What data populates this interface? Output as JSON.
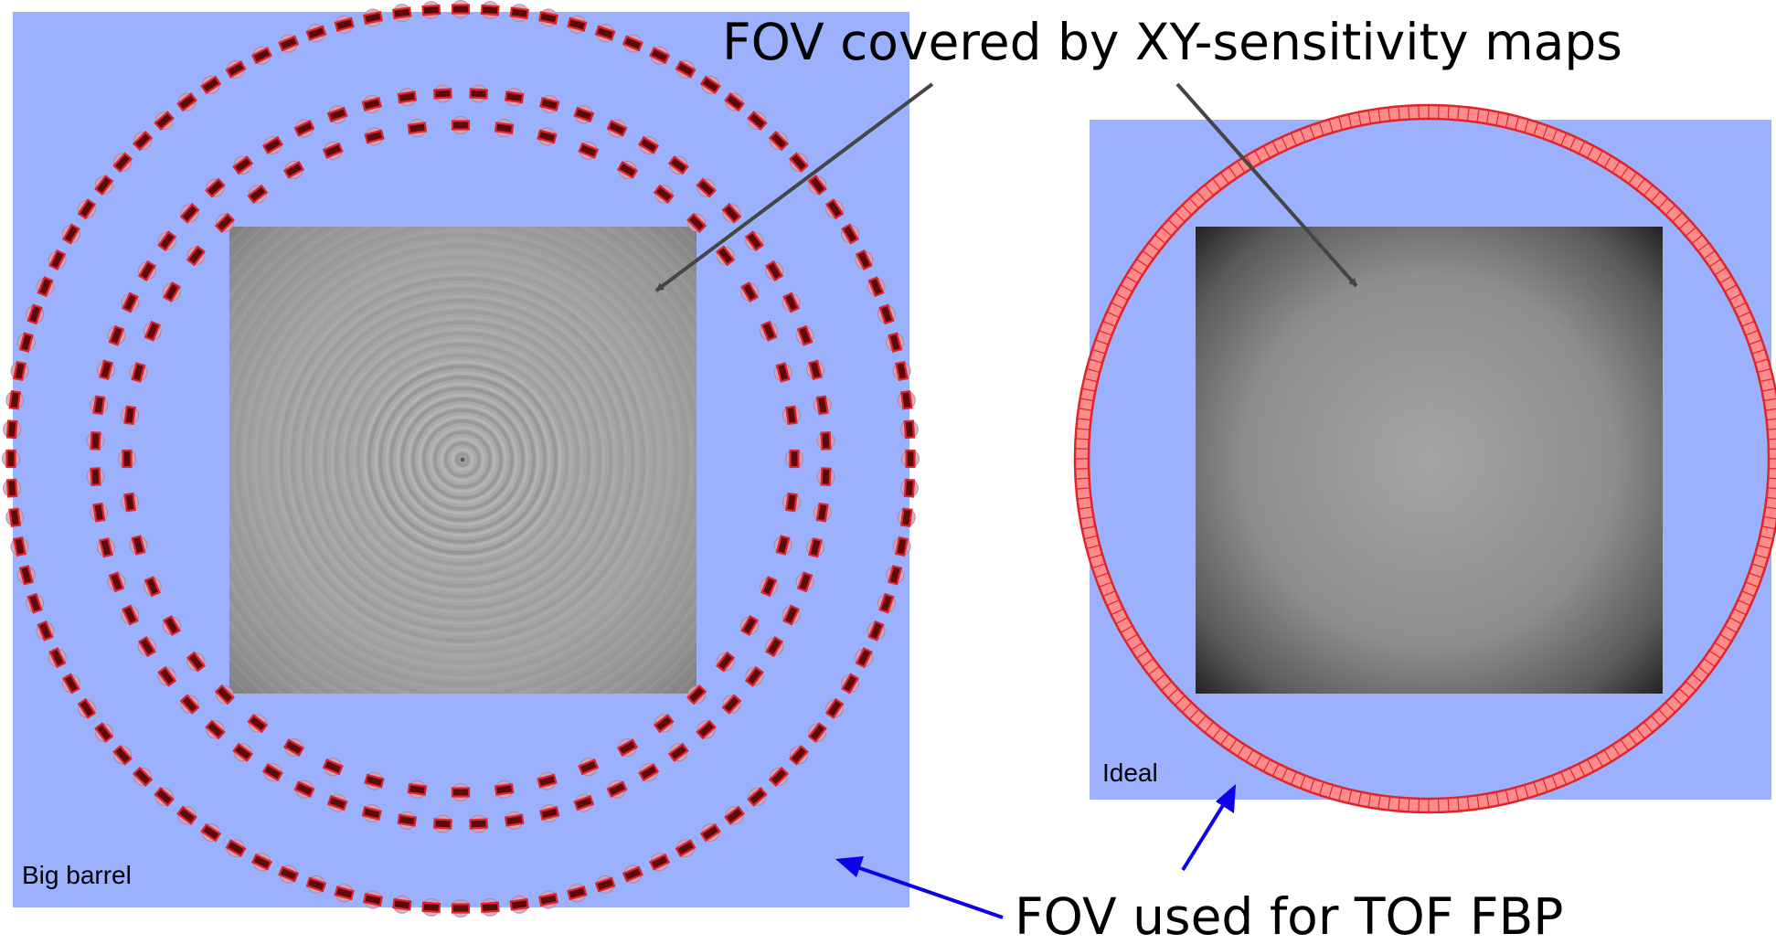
{
  "annotations": {
    "sensitivity_callout": "FOV covered by XY-sensitivity maps",
    "tof_callout": "FOV used for TOF FBP"
  },
  "panels": {
    "left": {
      "label": "Big barrel"
    },
    "right": {
      "label": "Ideal"
    }
  },
  "colors": {
    "fov_background": "#9bb1fd",
    "detector_outline": "#e0242b",
    "detector_fill": "#ff8c8c",
    "detector_core": "#5a0a0a",
    "sensitivity_arrow": "#454545",
    "tof_arrow": "#0b00e6"
  },
  "scanners": {
    "big_barrel_rings": [
      {
        "ring": 1,
        "modules": 96
      },
      {
        "ring": 2,
        "modules": 64
      },
      {
        "ring": 3,
        "modules": 48
      }
    ],
    "ideal_ring": {
      "segments": 220
    }
  }
}
